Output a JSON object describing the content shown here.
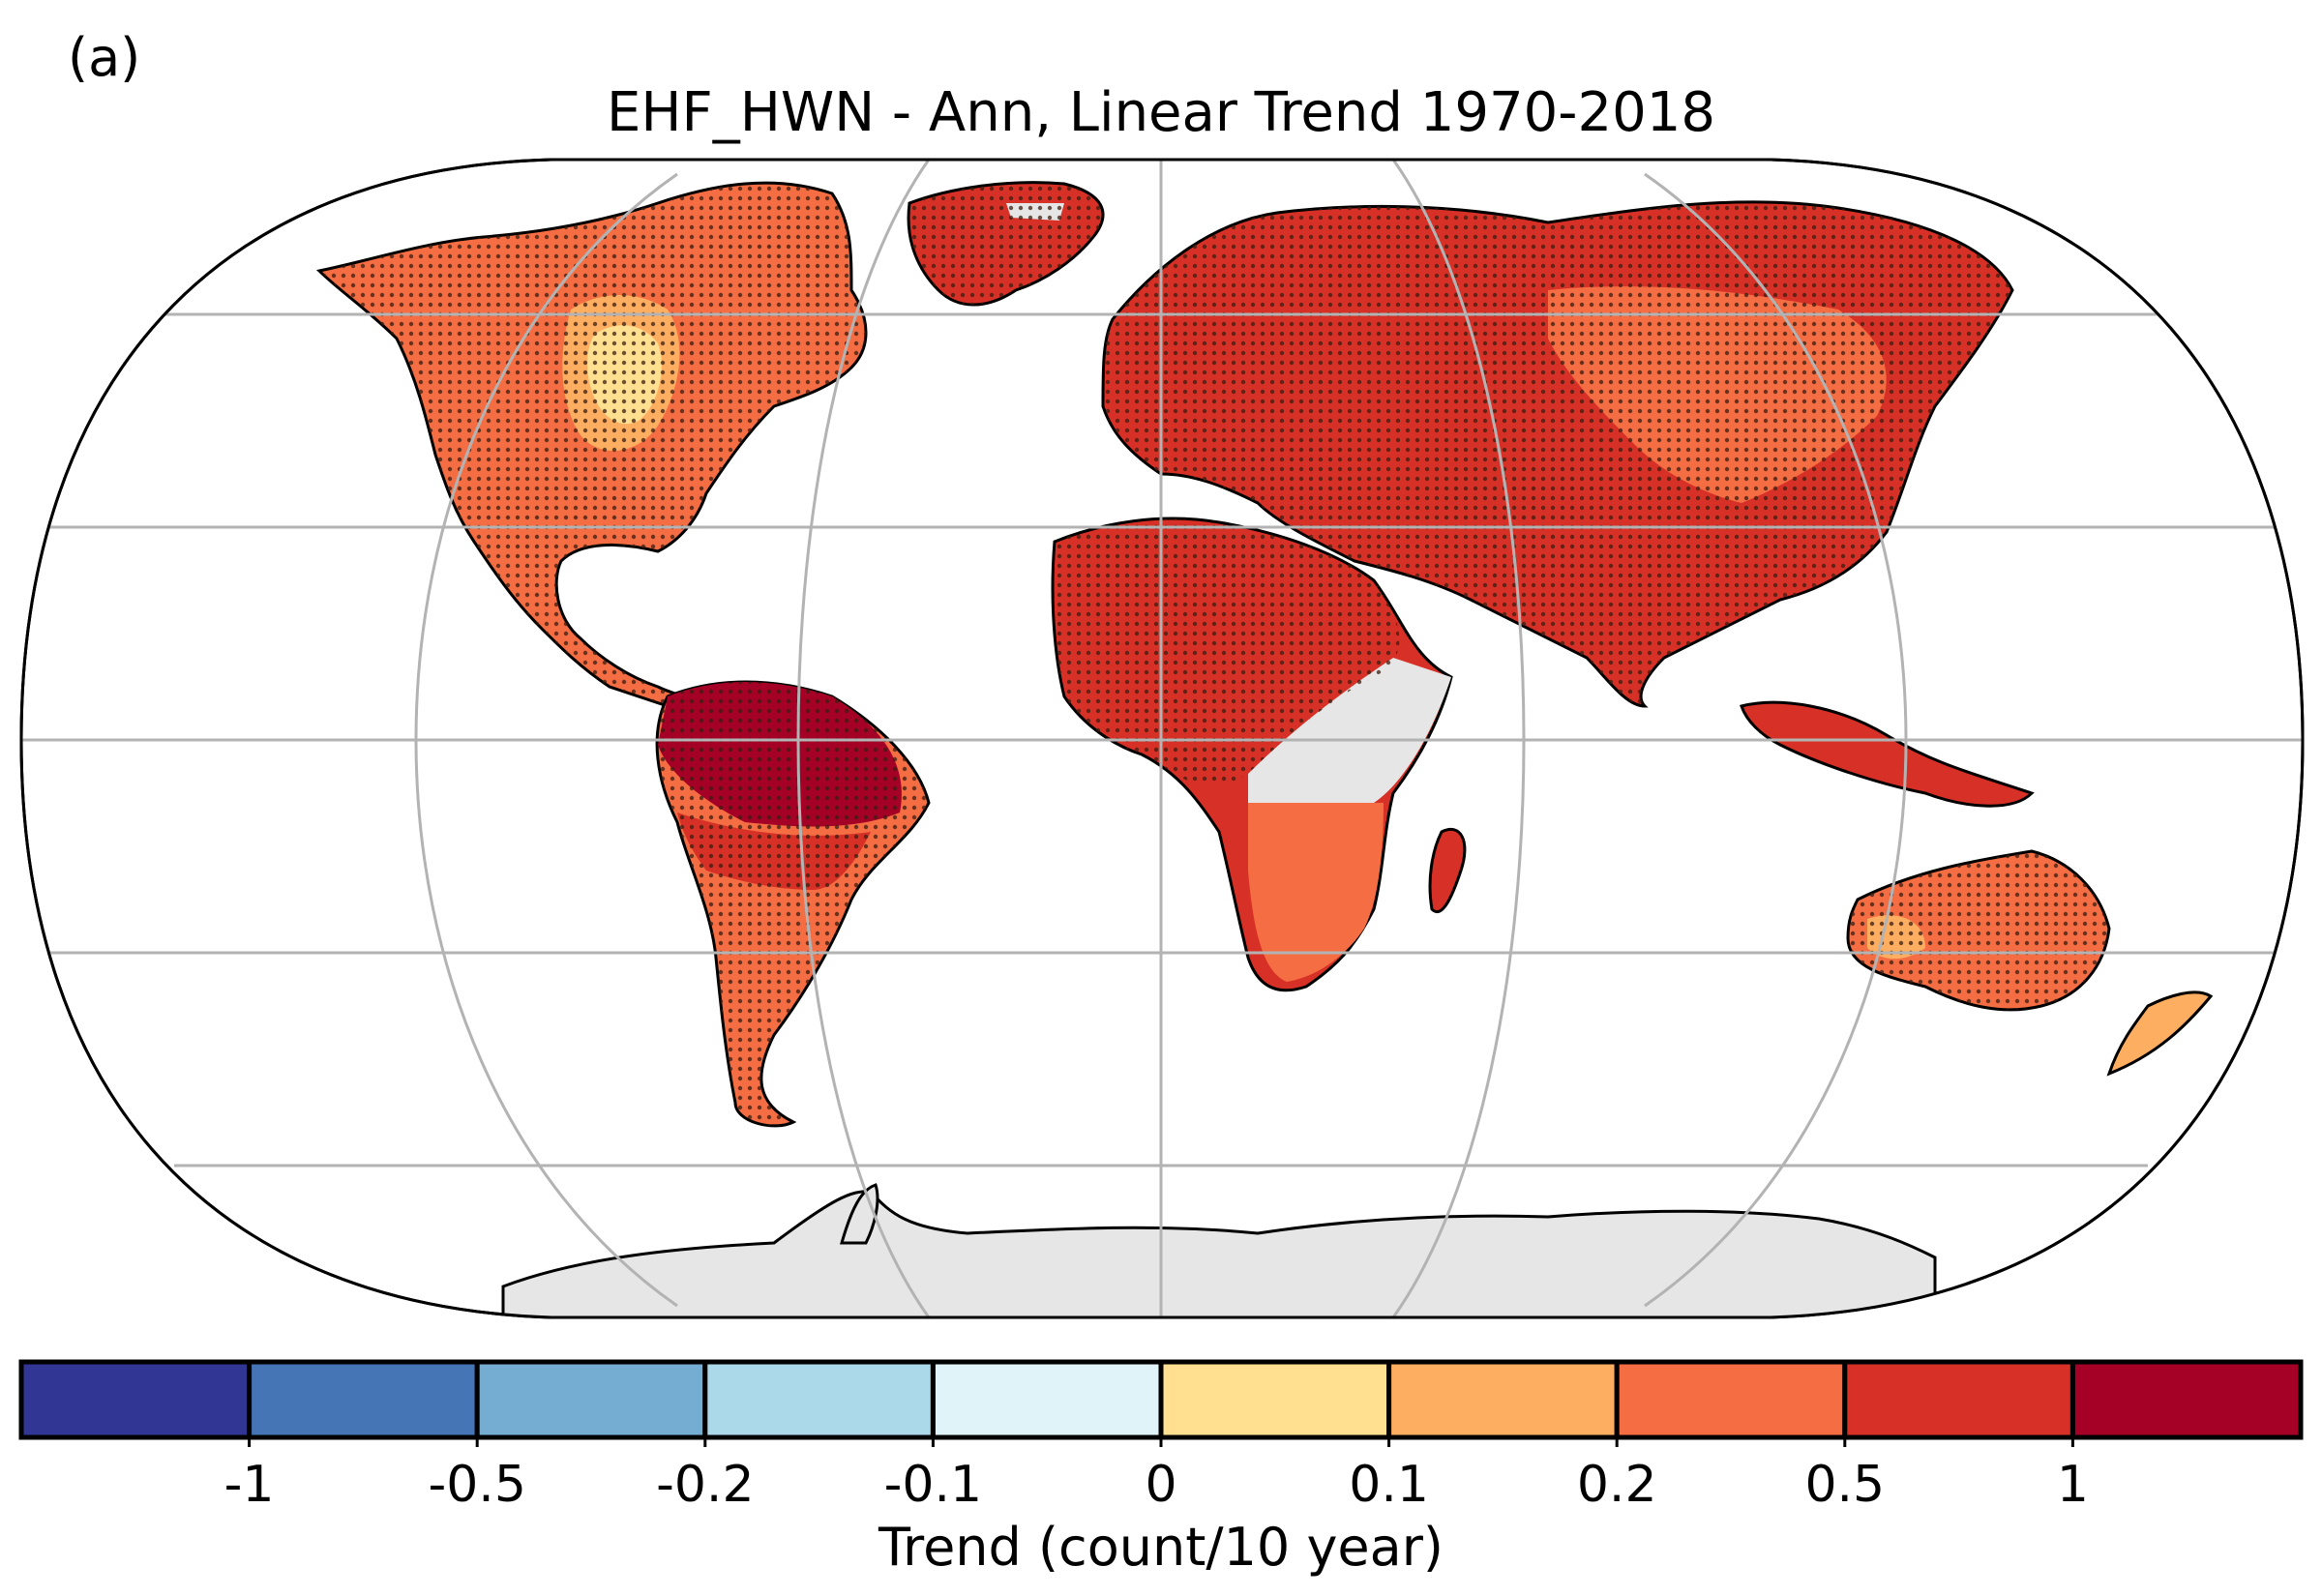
{
  "panel_label": "(a)",
  "title": "EHF_HWN - Ann, Linear Trend 1970-2018",
  "colorbar": {
    "label": "Trend (count/10 year)",
    "ticks": [
      "-1",
      "-0.5",
      "-0.2",
      "-0.1",
      "0",
      "0.1",
      "0.2",
      "0.5",
      "1"
    ],
    "colors": [
      "#313695",
      "#4575b4",
      "#74add1",
      "#abd9e9",
      "#e0f3f8",
      "#fee090",
      "#fdae61",
      "#f46d43",
      "#d73027",
      "#a50026"
    ]
  },
  "map": {
    "projection": "robinson",
    "ocean_color": "#ffffff",
    "no_data_color": "#e6e6e6",
    "gridlines": true,
    "stippling": "significance dots over land"
  }
}
